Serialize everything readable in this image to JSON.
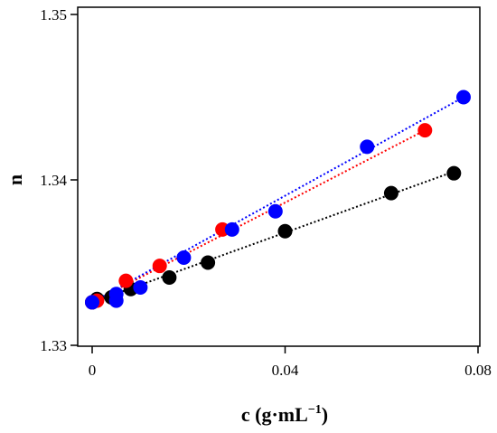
{
  "chart_data": {
    "type": "scatter",
    "xlabel": "c (g·mL",
    "xlabel_superscript": "−1",
    "xlabel_close": ")",
    "ylabel": "n",
    "xlim": [
      -0.003,
      0.0795
    ],
    "ylim": [
      1.33,
      1.35
    ],
    "x_ticks": [
      0,
      0.04,
      0.08
    ],
    "x_tick_labels": [
      "0",
      "0.04",
      "0.08"
    ],
    "y_ticks": [
      1.33,
      1.34,
      1.35
    ],
    "y_tick_labels": [
      "1.33",
      "1.34",
      "1.35"
    ],
    "grid": false,
    "legend": "none",
    "trendlines": "dotted linear fit per series",
    "series": [
      {
        "color": "#000000",
        "points": [
          {
            "x": 0.0,
            "y": 1.3326
          },
          {
            "x": 0.001,
            "y": 1.3328
          },
          {
            "x": 0.004,
            "y": 1.3329
          },
          {
            "x": 0.008,
            "y": 1.3334
          },
          {
            "x": 0.016,
            "y": 1.3341
          },
          {
            "x": 0.024,
            "y": 1.335
          },
          {
            "x": 0.04,
            "y": 1.3369
          },
          {
            "x": 0.062,
            "y": 1.3392
          },
          {
            "x": 0.075,
            "y": 1.3404
          }
        ],
        "fit": {
          "x": [
            0.0,
            0.075
          ],
          "y": [
            1.3326,
            1.3405
          ]
        }
      },
      {
        "color": "#ff0000",
        "points": [
          {
            "x": 0.0,
            "y": 1.3326
          },
          {
            "x": 0.001,
            "y": 1.3327
          },
          {
            "x": 0.007,
            "y": 1.3339
          },
          {
            "x": 0.014,
            "y": 1.3348
          },
          {
            "x": 0.027,
            "y": 1.337
          },
          {
            "x": 0.069,
            "y": 1.343
          }
        ],
        "fit": {
          "x": [
            0.0,
            0.069
          ],
          "y": [
            1.3326,
            1.343
          ]
        }
      },
      {
        "color": "#0000ff",
        "points": [
          {
            "x": 0.0,
            "y": 1.3326
          },
          {
            "x": 0.005,
            "y": 1.3327
          },
          {
            "x": 0.005,
            "y": 1.3331
          },
          {
            "x": 0.01,
            "y": 1.3335
          },
          {
            "x": 0.019,
            "y": 1.3353
          },
          {
            "x": 0.029,
            "y": 1.337
          },
          {
            "x": 0.038,
            "y": 1.3381
          },
          {
            "x": 0.057,
            "y": 1.342
          },
          {
            "x": 0.077,
            "y": 1.345
          }
        ],
        "fit": {
          "x": [
            0.0,
            0.077
          ],
          "y": [
            1.3326,
            1.345
          ]
        }
      }
    ]
  }
}
